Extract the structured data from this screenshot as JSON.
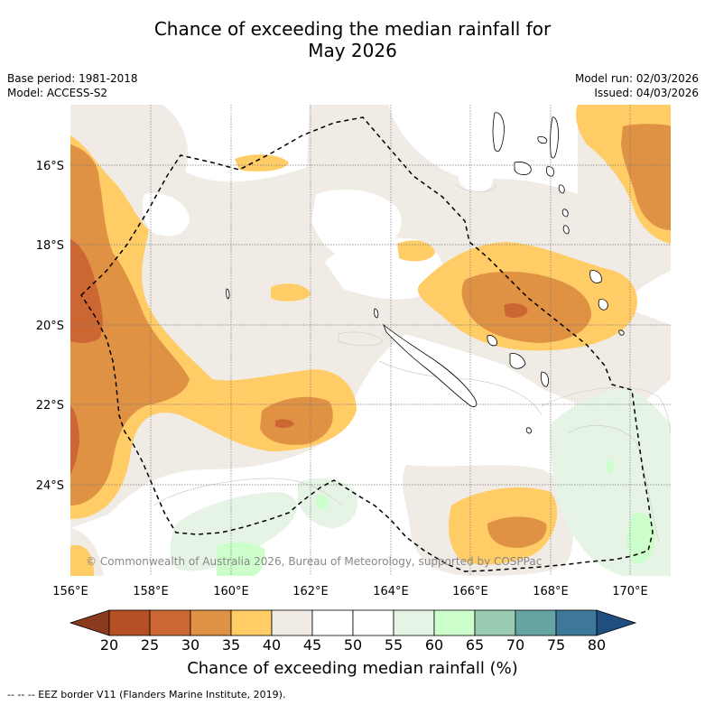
{
  "title_line1": "Chance of exceeding the median rainfall for",
  "title_line2": "May 2026",
  "base_period": "Base period: 1981-2018",
  "model": "Model: ACCESS-S2",
  "model_run": "Model run: 02/03/2026",
  "issued": "Issued: 04/03/2026",
  "copyright": "© Commonwealth of Australia 2026, Bureau of Meteorology, supported by COSPPac",
  "lat_labels": [
    "16°S",
    "18°S",
    "20°S",
    "22°S",
    "24°S"
  ],
  "lon_labels": [
    "156°E",
    "158°E",
    "160°E",
    "162°E",
    "164°E",
    "166°E",
    "168°E",
    "170°E"
  ],
  "colorbar": {
    "ticks": [
      "20",
      "25",
      "30",
      "35",
      "40",
      "45",
      "50",
      "55",
      "60",
      "65",
      "70",
      "75",
      "80"
    ],
    "colors": [
      "#8c3a1e",
      "#b54f24",
      "#cc6633",
      "#e09244",
      "#ffcc66",
      "#f0ebe4",
      "#ffffff",
      "#ffffff",
      "#e6f4e6",
      "#ccffcc",
      "#99ccb3",
      "#66a3a3",
      "#3d7799",
      "#1f4f80"
    ],
    "title": "Chance of exceeding median rainfall (%)"
  },
  "footnote": "-- -- -- EEZ border V11 (Flanders Marine Institute, 2019).",
  "colors": {
    "beige": "#f0ebe4",
    "light_orange": "#ffcc66",
    "orange": "#e09244",
    "dark_orange": "#cc6633",
    "light_green": "#e6f4e6",
    "green": "#ccffcc"
  }
}
